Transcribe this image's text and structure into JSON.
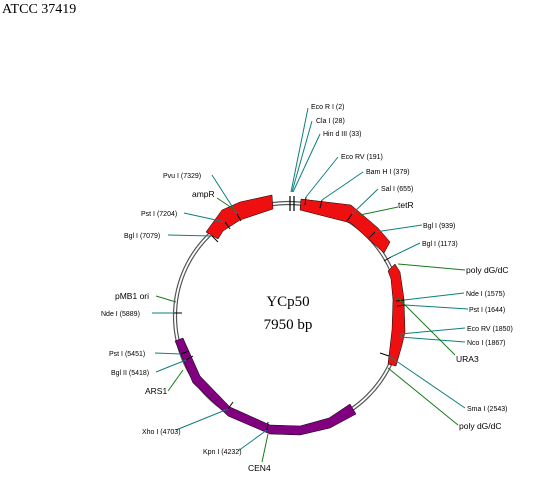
{
  "title": "ATCC 37419",
  "plasmid": {
    "name": "YCp50",
    "size": "7950 bp"
  },
  "colors": {
    "red": "#ee1010",
    "purple": "#800080",
    "teal": "#0e7f7f",
    "green": "#1a7a1a",
    "backbone": "#555555"
  },
  "sites": [
    {
      "label": "Eco  R I (2)",
      "line": "teal"
    },
    {
      "label": "Cla  I (28)",
      "line": "teal"
    },
    {
      "label": "Hin  d III (33)",
      "line": "teal"
    },
    {
      "label": "Eco   RV (191)",
      "line": "teal"
    },
    {
      "label": "Bam   H I (379)",
      "line": "teal"
    },
    {
      "label": "Sal  I (655)",
      "line": "teal"
    },
    {
      "label": "Bgl  I (939)",
      "line": "teal"
    },
    {
      "label": "Bgl  I (1173)",
      "line": "teal"
    },
    {
      "label": "Nde  I (1575)",
      "line": "teal"
    },
    {
      "label": "Pst  I (1644)",
      "line": "teal"
    },
    {
      "label": "Eco   RV (1850)",
      "line": "teal"
    },
    {
      "label": "Nco  I (1867)",
      "line": "teal"
    },
    {
      "label": "Sma   I (2543)",
      "line": "teal"
    },
    {
      "label": "Kpn  I (4232)",
      "line": "teal"
    },
    {
      "label": "Xho  I (4703)",
      "line": "teal"
    },
    {
      "label": "Bgl  II (5418)",
      "line": "teal"
    },
    {
      "label": "Pst  I (5451)",
      "line": "teal"
    },
    {
      "label": "Nde   I (5889)",
      "line": "teal"
    },
    {
      "label": "Bgl  I (7079)",
      "line": "teal"
    },
    {
      "label": "Pst  I (7204)",
      "line": "teal"
    },
    {
      "label": "Pvu   I (7329)",
      "line": "teal"
    }
  ],
  "features": [
    {
      "label": "tetR",
      "line": "green"
    },
    {
      "label": "poly dG/dC",
      "line": "green"
    },
    {
      "label": "URA3",
      "line": "green"
    },
    {
      "label": "poly dG/dC",
      "line": "green"
    },
    {
      "label": "CEN4",
      "line": "green"
    },
    {
      "label": "ARS1",
      "line": "green"
    },
    {
      "label": "pMB1 ori",
      "line": "green"
    },
    {
      "label": "ampR",
      "line": "green"
    }
  ]
}
